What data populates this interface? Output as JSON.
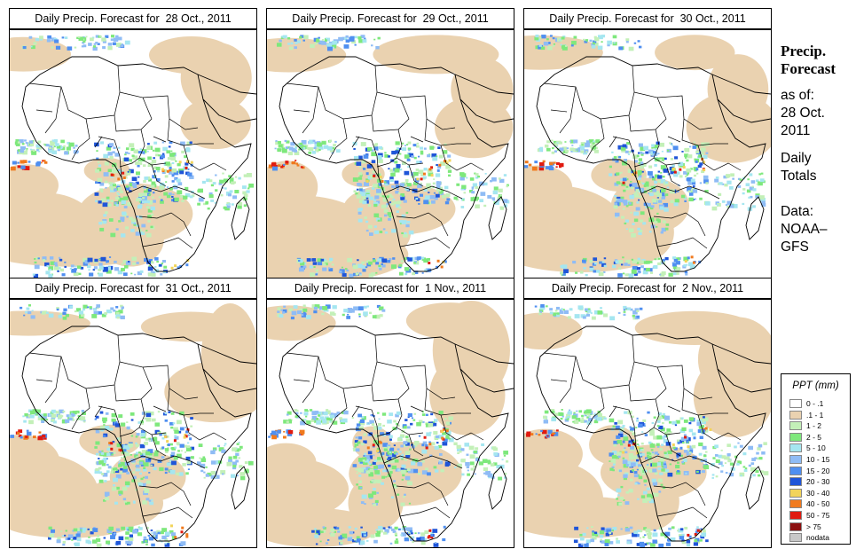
{
  "panels": [
    {
      "title": "Daily Precip. Forecast for  28 Oct., 2011",
      "variant": 0
    },
    {
      "title": "Daily Precip. Forecast for  29 Oct., 2011",
      "variant": 1
    },
    {
      "title": "Daily Precip. Forecast for  30 Oct., 2011",
      "variant": 2
    },
    {
      "title": "Daily Precip. Forecast for  31 Oct., 2011",
      "variant": 3
    },
    {
      "title": "Daily Precip. Forecast for  1 Nov., 2011",
      "variant": 4
    },
    {
      "title": "Daily Precip. Forecast for  2 Nov., 2011",
      "variant": 5
    }
  ],
  "side": {
    "title_line1": "Precip.",
    "title_line2": "Forecast",
    "asof_line1": "as of:",
    "asof_line2": "28 Oct.",
    "asof_line3": "2011",
    "totals_line1": "Daily",
    "totals_line2": "Totals",
    "data_line1": "Data:",
    "data_line2": "NOAA–",
    "data_line3": "GFS"
  },
  "legend": {
    "title": "PPT (mm)",
    "items": [
      {
        "label": "0 - .1",
        "color": "#ffffff"
      },
      {
        "label": ".1 - 1",
        "color": "#ead2b0"
      },
      {
        "label": "1 - 2",
        "color": "#c3f0b8"
      },
      {
        "label": "2 - 5",
        "color": "#7ee87c"
      },
      {
        "label": "5 - 10",
        "color": "#a5e6f0"
      },
      {
        "label": "10 - 15",
        "color": "#8fbcf5"
      },
      {
        "label": "15 - 20",
        "color": "#4f8ff0"
      },
      {
        "label": "20 - 30",
        "color": "#1f55d8"
      },
      {
        "label": "30 - 40",
        "color": "#f2d45a"
      },
      {
        "label": "40 - 50",
        "color": "#f07a1e"
      },
      {
        "label": "50 - 75",
        "color": "#e01a10"
      },
      {
        "label": "> 75",
        "color": "#8c1010"
      },
      {
        "label": "nodata",
        "color": "#c8c8c8"
      }
    ]
  }
}
